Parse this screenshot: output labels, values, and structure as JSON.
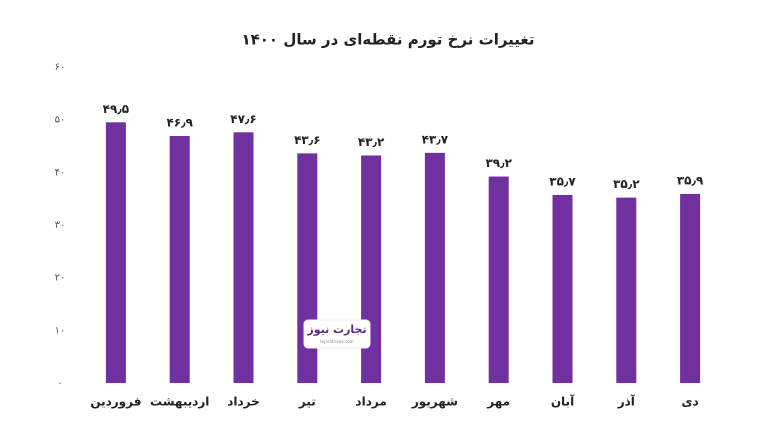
{
  "chart_data": {
    "type": "bar",
    "title": "تغییرات نرخ تورم نقطه‌ای در سال ۱۴۰۰",
    "categories": [
      "فروردین",
      "اردیبهشت",
      "خرداد",
      "تیر",
      "مرداد",
      "شهریور",
      "مهر",
      "آبان",
      "آذر",
      "دی"
    ],
    "values": [
      49.5,
      46.9,
      47.6,
      43.6,
      43.2,
      43.7,
      39.2,
      35.7,
      35.2,
      35.9
    ],
    "value_labels": [
      "۴۹٫۵",
      "۴۶٫۹",
      "۴۷٫۶",
      "۴۳٫۶",
      "۴۳٫۲",
      "۴۳٫۷",
      "۳۹٫۲",
      "۳۵٫۷",
      "۳۵٫۲",
      "۳۵٫۹"
    ],
    "color": "#7030a0",
    "ylim": [
      0,
      60
    ],
    "yticks": [
      {
        "value": 0,
        "label": "۰"
      },
      {
        "value": 10,
        "label": "۱۰"
      },
      {
        "value": 20,
        "label": "۲۰"
      },
      {
        "value": 30,
        "label": "۳۰"
      },
      {
        "value": 40,
        "label": "۴۰"
      },
      {
        "value": 50,
        "label": "۵۰"
      },
      {
        "value": 60,
        "label": "۶۰"
      }
    ],
    "watermark": {
      "logo": "تجارت نیوز",
      "url": "tejaratnews.com"
    }
  }
}
